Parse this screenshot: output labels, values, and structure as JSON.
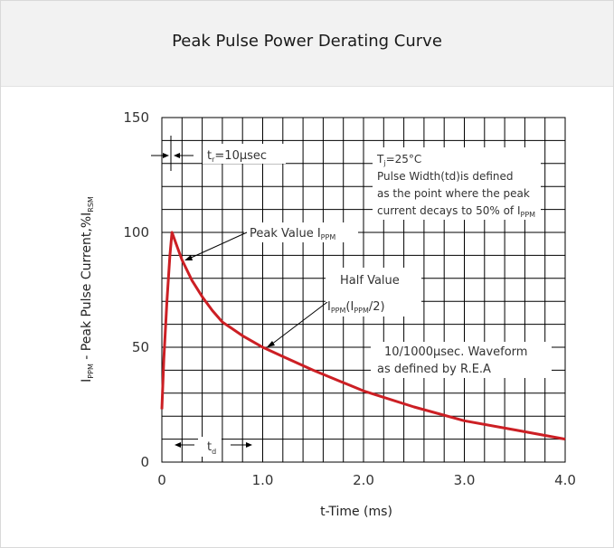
{
  "title": "Peak Pulse Power Derating Curve",
  "colors": {
    "curve": "#cc1f24",
    "grid": "#000000",
    "text": "#333333",
    "header_bg": "#f2f2f2"
  },
  "chart_data": {
    "type": "line",
    "title": "Peak Pulse Power Derating Curve",
    "xlabel": "t-Time (ms)",
    "ylabel": {
      "main": "I",
      "sub": "PPM",
      "middle": " - Peak Pulse Current,%I",
      "sub2": "RSM"
    },
    "xlim": [
      0,
      4.0
    ],
    "ylim": [
      0,
      150
    ],
    "x_ticks": [
      0,
      1.0,
      2.0,
      3.0,
      4.0
    ],
    "x_tick_labels": [
      "0",
      "1.0",
      "2.0",
      "3.0",
      "4.0"
    ],
    "y_ticks": [
      0,
      50,
      100,
      150
    ],
    "y_tick_labels": [
      "0",
      "50",
      "100",
      "150"
    ],
    "grid": true,
    "series": [
      {
        "x": [
          0.0,
          0.02,
          0.05,
          0.08,
          0.1,
          0.15,
          0.2,
          0.3,
          0.4,
          0.5,
          0.6,
          0.8,
          1.0,
          1.2,
          1.5,
          2.0,
          2.5,
          3.0,
          3.5,
          4.0
        ],
        "values": [
          23,
          45,
          70,
          90,
          100,
          94,
          88,
          79,
          72,
          66,
          61,
          55,
          50,
          46,
          40,
          31,
          24,
          18,
          14,
          10
        ]
      }
    ],
    "annotations": {
      "tr": {
        "main": "t",
        "sub": "r",
        "rest": "=10μsec"
      },
      "conditions": {
        "line1": {
          "main": "T",
          "sub": "j",
          "rest": "=25°C"
        },
        "line2": "Pulse Width(td)is defined",
        "line3": "as the point where the peak",
        "line4": {
          "main": "current decays to 50% of I",
          "sub": "PPM"
        }
      },
      "peak": {
        "main": "Peak Value I",
        "sub": "PPM"
      },
      "half": {
        "line1": "Half Value",
        "line2": {
          "a": "I",
          "a_sub": "PPM",
          "b": "(I",
          "b_sub": "PPM",
          "c": "/2)"
        }
      },
      "waveform": {
        "line1": "10/1000μsec. Waveform",
        "line2": "as defined by R.E.A"
      },
      "td": {
        "main": "t",
        "sub": "d"
      }
    }
  }
}
